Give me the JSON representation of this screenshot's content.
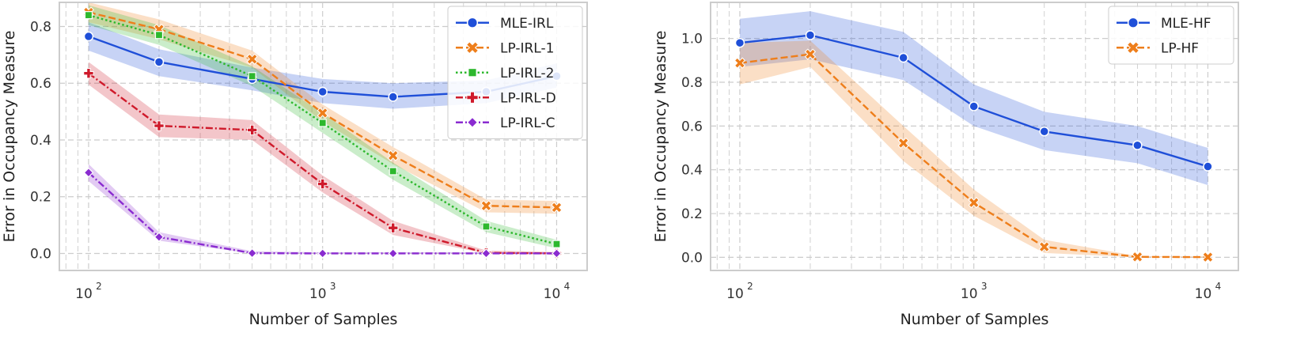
{
  "chart_data": [
    {
      "type": "line",
      "xscale": "log",
      "x": [
        100,
        200,
        500,
        1000,
        2000,
        5000,
        10000
      ],
      "xlim": [
        75,
        13500
      ],
      "ylim": [
        -0.06,
        0.885
      ],
      "xticks": [
        100,
        1000,
        10000
      ],
      "xtick_labels": [
        "10",
        "10",
        "10"
      ],
      "xtick_exponents": [
        "2",
        "3",
        "4"
      ],
      "yticks": [
        0.0,
        0.2,
        0.4,
        0.6,
        0.8
      ],
      "ytick_labels": [
        "0.0",
        "0.2",
        "0.4",
        "0.6",
        "0.8"
      ],
      "xlabel": "Number of Samples",
      "ylabel": "Error in Occupancy Measure",
      "grid": true,
      "legend_position": "top-right",
      "series": [
        {
          "name": "MLE-IRL",
          "color": "#1f4fd8",
          "dash": "solid",
          "marker": "circle",
          "values": [
            0.765,
            0.675,
            0.615,
            0.57,
            0.552,
            0.57,
            0.625
          ],
          "lower": [
            0.715,
            0.625,
            0.575,
            0.53,
            0.51,
            0.53,
            0.585
          ],
          "upper": [
            0.815,
            0.72,
            0.655,
            0.615,
            0.6,
            0.61,
            0.67
          ]
        },
        {
          "name": "LP-IRL-1",
          "color": "#ee7e1b",
          "dash": "dashed",
          "marker": "x",
          "values": [
            0.85,
            0.79,
            0.685,
            0.495,
            0.345,
            0.168,
            0.162
          ],
          "lower": [
            0.815,
            0.755,
            0.655,
            0.465,
            0.315,
            0.145,
            0.14
          ],
          "upper": [
            0.885,
            0.825,
            0.715,
            0.525,
            0.375,
            0.19,
            0.185
          ]
        },
        {
          "name": "LP-IRL-2",
          "color": "#2db82d",
          "dash": "dotted",
          "marker": "square",
          "values": [
            0.84,
            0.77,
            0.625,
            0.46,
            0.29,
            0.095,
            0.033
          ],
          "lower": [
            0.805,
            0.735,
            0.59,
            0.425,
            0.26,
            0.075,
            0.018
          ],
          "upper": [
            0.875,
            0.805,
            0.66,
            0.495,
            0.32,
            0.115,
            0.048
          ]
        },
        {
          "name": "LP-IRL-D",
          "color": "#cf1a2b",
          "dash": "dashdot",
          "marker": "plus",
          "values": [
            0.635,
            0.45,
            0.435,
            0.245,
            0.09,
            0.002,
            0.0
          ],
          "lower": [
            0.595,
            0.41,
            0.4,
            0.215,
            0.065,
            0.0,
            0.0
          ],
          "upper": [
            0.675,
            0.49,
            0.47,
            0.275,
            0.115,
            0.01,
            0.005
          ]
        },
        {
          "name": "LP-IRL-C",
          "color": "#8a2bd0",
          "dash": "dashdot",
          "marker": "diamond",
          "values": [
            0.285,
            0.058,
            0.001,
            0.0,
            0.0,
            0.0,
            0.0
          ],
          "lower": [
            0.255,
            0.045,
            0.0,
            0.0,
            0.0,
            0.0,
            0.0
          ],
          "upper": [
            0.315,
            0.075,
            0.008,
            0.004,
            0.004,
            0.004,
            0.004
          ]
        }
      ]
    },
    {
      "type": "line",
      "xscale": "log",
      "x": [
        100,
        200,
        500,
        1000,
        2000,
        5000,
        10000
      ],
      "xlim": [
        75,
        13500
      ],
      "ylim": [
        -0.06,
        1.165
      ],
      "xticks": [
        100,
        1000,
        10000
      ],
      "xtick_labels": [
        "10",
        "10",
        "10"
      ],
      "xtick_exponents": [
        "2",
        "3",
        "4"
      ],
      "yticks": [
        0.0,
        0.2,
        0.4,
        0.6,
        0.8,
        1.0
      ],
      "ytick_labels": [
        "0.0",
        "0.2",
        "0.4",
        "0.6",
        "0.8",
        "1.0"
      ],
      "xlabel": "Number of Samples",
      "ylabel": "Error in Occupancy Measure",
      "grid": true,
      "legend_position": "top-right",
      "series": [
        {
          "name": "MLE-HF",
          "color": "#1f4fd8",
          "dash": "solid",
          "marker": "circle",
          "values": [
            0.98,
            1.015,
            0.912,
            0.69,
            0.575,
            0.512,
            0.415
          ],
          "lower": [
            0.87,
            0.905,
            0.81,
            0.6,
            0.49,
            0.43,
            0.33
          ],
          "upper": [
            1.09,
            1.125,
            1.03,
            0.79,
            0.665,
            0.6,
            0.5
          ]
        },
        {
          "name": "LP-HF",
          "color": "#ee7e1b",
          "dash": "dashed",
          "marker": "x",
          "values": [
            0.888,
            0.928,
            0.522,
            0.25,
            0.048,
            0.002,
            0.001
          ],
          "lower": [
            0.79,
            0.87,
            0.44,
            0.19,
            0.02,
            0.0,
            0.0
          ],
          "upper": [
            0.98,
            0.99,
            0.6,
            0.31,
            0.08,
            0.006,
            0.004
          ]
        }
      ]
    }
  ]
}
